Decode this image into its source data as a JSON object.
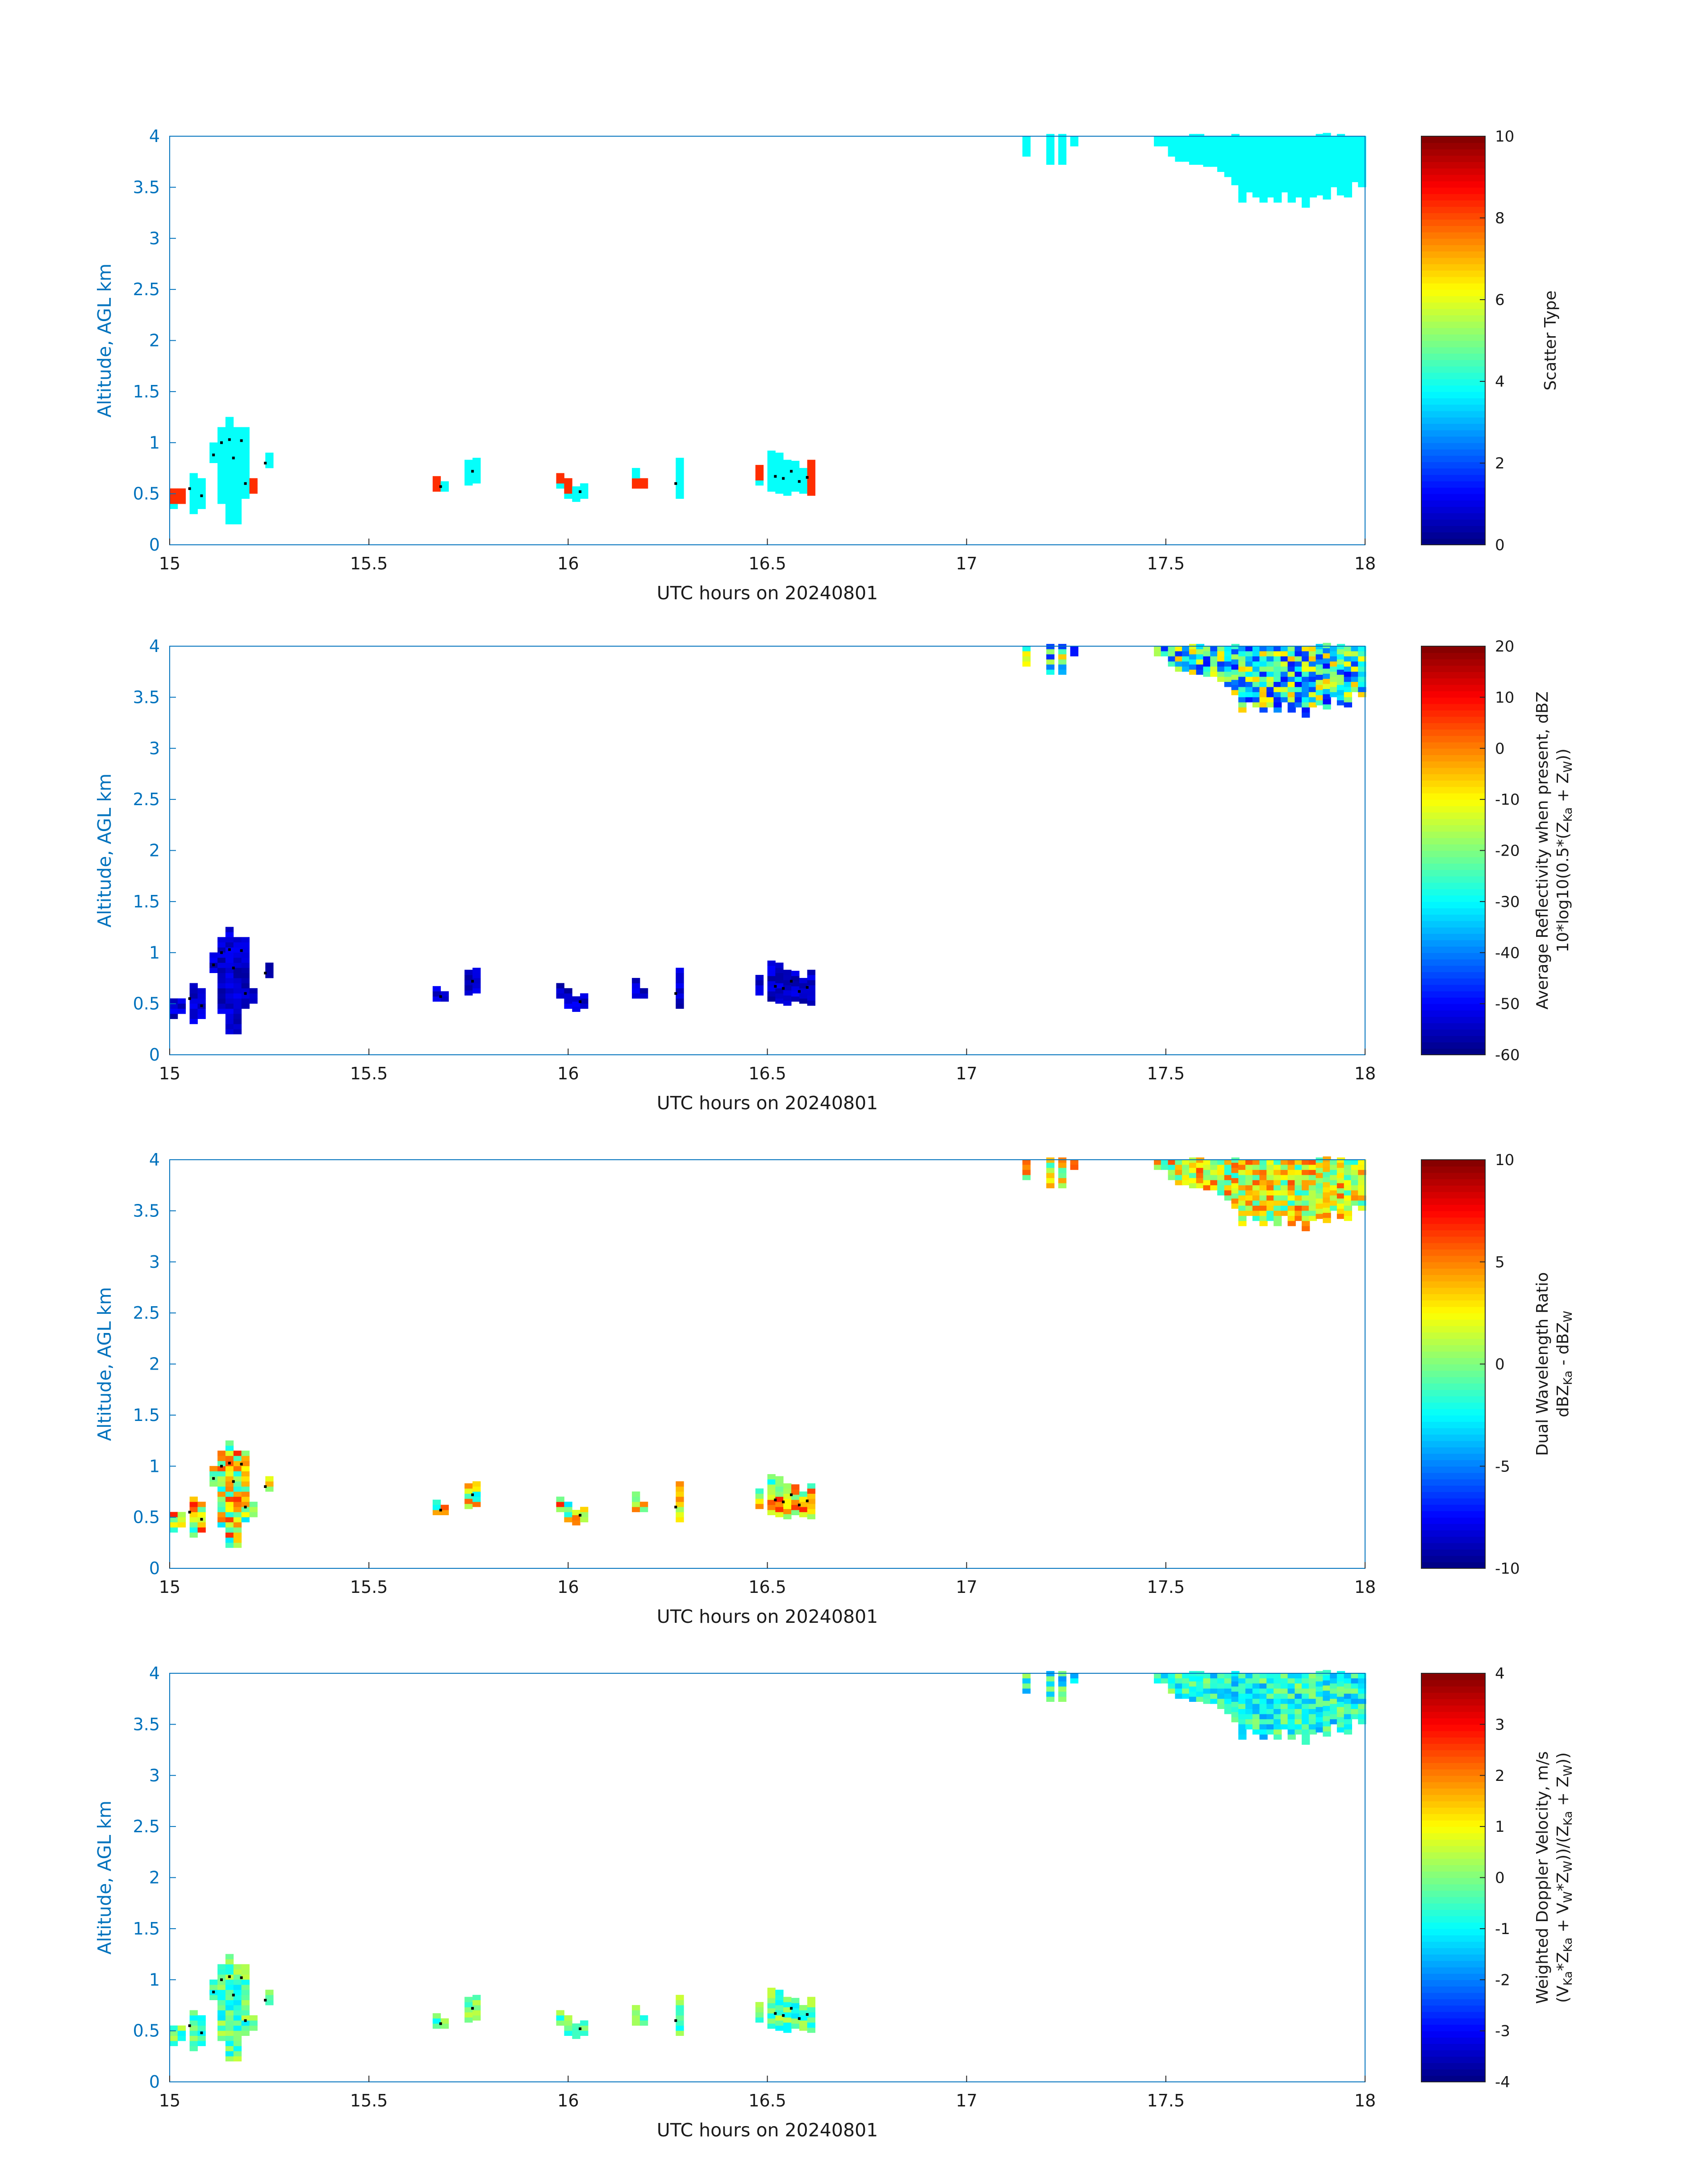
{
  "chart_data": [
    {
      "type": "heatmap",
      "panel": 1,
      "xlabel": "UTC hours on 20240801",
      "ylabel": "Altitude, AGL km",
      "xlim": [
        15,
        18
      ],
      "ylim": [
        0,
        4
      ],
      "xticks": [
        "15",
        "15.5",
        "16",
        "16.5",
        "17",
        "17.5",
        "18"
      ],
      "yticks": [
        "0",
        "0.5",
        "1",
        "1.5",
        "2",
        "2.5",
        "3",
        "3.5",
        "4"
      ],
      "colorbar": {
        "lines": [
          "Scatter Type"
        ],
        "lim": [
          0,
          10
        ],
        "ticks": [
          "0",
          "2",
          "4",
          "6",
          "8",
          "10"
        ],
        "colormap": "jet"
      },
      "fill_value": 3.8,
      "alt_values": [
        {
          "t": 15.01,
          "z0": 0.38,
          "z1": 0.55,
          "v": 8.3
        },
        {
          "t": 15.66,
          "z0": 0.52,
          "z1": 0.66,
          "v": 8.3
        },
        {
          "t": 15.97,
          "z0": 0.58,
          "z1": 0.72,
          "v": 8.3
        },
        {
          "t": 15.99,
          "z0": 0.5,
          "z1": 0.6,
          "v": 8.3
        },
        {
          "t": 16.17,
          "z0": 0.52,
          "z1": 0.6,
          "v": 8.3
        },
        {
          "t": 16.47,
          "z0": 0.6,
          "z1": 0.75,
          "v": 8.3
        },
        {
          "t": 16.6,
          "z0": 0.48,
          "z1": 0.82,
          "v": 8.3
        },
        {
          "t": 15.2,
          "z0": 0.48,
          "z1": 0.6,
          "v": 8.3
        }
      ]
    },
    {
      "type": "heatmap",
      "panel": 2,
      "xlabel": "UTC hours on 20240801",
      "ylabel": "Altitude, AGL km",
      "xlim": [
        15,
        18
      ],
      "ylim": [
        0,
        4
      ],
      "xticks": [
        "15",
        "15.5",
        "16",
        "16.5",
        "17",
        "17.5",
        "18"
      ],
      "yticks": [
        "0",
        "0.5",
        "1",
        "1.5",
        "2",
        "2.5",
        "3",
        "3.5",
        "4"
      ],
      "colorbar": {
        "lines": [
          "Average Reflectivity when present, dBZ",
          "10*log10(0.5*(Z",
          "Ka",
          " + Z",
          "W",
          "))"
        ],
        "lim": [
          -60,
          20
        ],
        "ticks": [
          "-60",
          "-50",
          "-40",
          "-30",
          "-20",
          "-10",
          "0",
          "10",
          "20"
        ],
        "colormap": "jet"
      },
      "lower_layer_range": [
        -58,
        -50
      ],
      "upper_cloud_range": [
        -50,
        -5
      ]
    },
    {
      "type": "heatmap",
      "panel": 3,
      "xlabel": "UTC hours on 20240801",
      "ylabel": "Altitude, AGL km",
      "xlim": [
        15,
        18
      ],
      "ylim": [
        0,
        4
      ],
      "xticks": [
        "15",
        "15.5",
        "16",
        "16.5",
        "17",
        "17.5",
        "18"
      ],
      "yticks": [
        "0",
        "0.5",
        "1",
        "1.5",
        "2",
        "2.5",
        "3",
        "3.5",
        "4"
      ],
      "colorbar": {
        "lines": [
          "Dual Wavelength Ratio",
          "dBZ",
          "Ka",
          " - dBZ",
          "W"
        ],
        "lim": [
          -10,
          10
        ],
        "ticks": [
          "-10",
          "-5",
          "0",
          "5",
          "10"
        ],
        "colormap": "jet"
      },
      "lower_layer_range": [
        -3,
        7
      ],
      "upper_cloud_range": [
        -2,
        6
      ]
    },
    {
      "type": "heatmap",
      "panel": 4,
      "xlabel": "UTC hours on 20240801",
      "ylabel": "Altitude, AGL km",
      "xlim": [
        15,
        18
      ],
      "ylim": [
        0,
        4
      ],
      "xticks": [
        "15",
        "15.5",
        "16",
        "16.5",
        "17",
        "17.5",
        "18"
      ],
      "yticks": [
        "0",
        "0.5",
        "1",
        "1.5",
        "2",
        "2.5",
        "3",
        "3.5",
        "4"
      ],
      "colorbar": {
        "lines": [
          "Weighted Doppler Velocity, m/s",
          "(V",
          "Ka",
          "*Z",
          "Ka",
          " + V",
          "W",
          "*Z",
          "W",
          "))/(Z",
          "Ka",
          " + Z",
          "W",
          "))"
        ],
        "lim": [
          -4,
          4
        ],
        "ticks": [
          "-4",
          "-3",
          "-2",
          "-1",
          "0",
          "1",
          "2",
          "3",
          "4"
        ],
        "colormap": "jet"
      },
      "lower_layer_range": [
        -1.2,
        0.6
      ],
      "upper_cloud_range": [
        -1.8,
        0.3
      ]
    }
  ],
  "echo_columns": [
    {
      "t": 15.0,
      "z0": 0.35,
      "z1": 0.55
    },
    {
      "t": 15.02,
      "z0": 0.4,
      "z1": 0.55
    },
    {
      "t": 15.05,
      "z0": 0.3,
      "z1": 0.7
    },
    {
      "t": 15.07,
      "z0": 0.35,
      "z1": 0.65
    },
    {
      "t": 15.1,
      "z0": 0.8,
      "z1": 1.0
    },
    {
      "t": 15.12,
      "z0": 0.4,
      "z1": 1.12
    },
    {
      "t": 15.14,
      "z0": 0.2,
      "z1": 1.22
    },
    {
      "t": 15.16,
      "z0": 0.2,
      "z1": 1.12
    },
    {
      "t": 15.18,
      "z0": 0.45,
      "z1": 1.12
    },
    {
      "t": 15.2,
      "z0": 0.5,
      "z1": 0.65
    },
    {
      "t": 15.24,
      "z0": 0.75,
      "z1": 0.88
    },
    {
      "t": 15.66,
      "z0": 0.52,
      "z1": 0.65
    },
    {
      "t": 15.68,
      "z0": 0.52,
      "z1": 0.62
    },
    {
      "t": 15.74,
      "z0": 0.58,
      "z1": 0.8
    },
    {
      "t": 15.76,
      "z0": 0.6,
      "z1": 0.82
    },
    {
      "t": 15.97,
      "z0": 0.55,
      "z1": 0.7
    },
    {
      "t": 15.99,
      "z0": 0.45,
      "z1": 0.62
    },
    {
      "t": 16.01,
      "z0": 0.42,
      "z1": 0.55
    },
    {
      "t": 16.03,
      "z0": 0.45,
      "z1": 0.6
    },
    {
      "t": 16.16,
      "z0": 0.55,
      "z1": 0.72
    },
    {
      "t": 16.18,
      "z0": 0.55,
      "z1": 0.62
    },
    {
      "t": 16.27,
      "z0": 0.45,
      "z1": 0.82
    },
    {
      "t": 16.47,
      "z0": 0.58,
      "z1": 0.75
    },
    {
      "t": 16.5,
      "z0": 0.52,
      "z1": 0.88
    },
    {
      "t": 16.52,
      "z0": 0.5,
      "z1": 0.88
    },
    {
      "t": 16.54,
      "z0": 0.48,
      "z1": 0.82
    },
    {
      "t": 16.56,
      "z0": 0.52,
      "z1": 0.78
    },
    {
      "t": 16.58,
      "z0": 0.5,
      "z1": 0.72
    },
    {
      "t": 16.6,
      "z0": 0.48,
      "z1": 0.8
    },
    {
      "t": 17.14,
      "z0": 3.8,
      "z1": 4.0
    },
    {
      "t": 17.2,
      "z0": 3.72,
      "z1": 4.0
    },
    {
      "t": 17.23,
      "z0": 3.72,
      "z1": 4.0
    },
    {
      "t": 17.26,
      "z0": 3.9,
      "z1": 4.0
    }
  ],
  "upper_cloud": {
    "t_start": 17.47,
    "t_end": 18.0,
    "base_km": [
      3.9,
      3.9,
      3.8,
      3.75,
      3.75,
      3.72,
      3.72,
      3.7,
      3.7,
      3.65,
      3.6,
      3.52,
      3.35,
      3.45,
      3.4,
      3.35,
      3.4,
      3.35,
      3.45,
      3.35,
      3.4,
      3.3,
      3.4,
      3.42,
      3.38,
      3.5,
      3.42,
      3.4,
      3.55,
      3.5
    ],
    "top_km": 4.0
  }
}
